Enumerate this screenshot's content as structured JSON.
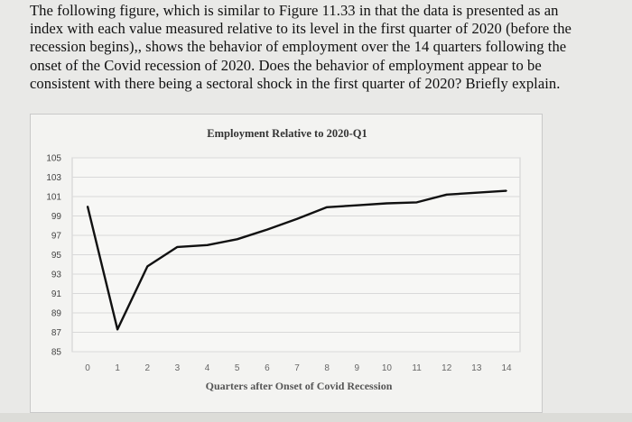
{
  "question": {
    "lines": [
      "The following figure, which is similar to Figure 11.33 in that the data is presented as an",
      "index with each value measured relative to its level in the first quarter of 2020 (before the",
      "recession begins),, shows the behavior of employment over the 14 quarters following the",
      "onset of the Covid recession of 2020.  Does the behavior of employment appear to be",
      "consistent with there being a sectoral shock in the first quarter of 2020? Briefly explain."
    ]
  },
  "chart_data": {
    "type": "line",
    "title": "Employment Relative to 2020-Q1",
    "xlabel": "Quarters after Onset of Covid Recession",
    "ylabel": "",
    "x": [
      0,
      1,
      2,
      3,
      4,
      5,
      6,
      7,
      8,
      9,
      10,
      11,
      12,
      13,
      14
    ],
    "y_ticks": [
      85,
      87,
      89,
      91,
      93,
      95,
      97,
      99,
      101,
      103,
      105
    ],
    "ylim": [
      85,
      105
    ],
    "xlim": [
      0,
      14
    ],
    "grid": true,
    "series": [
      {
        "values": [
          100,
          87.3,
          93.8,
          95.8,
          96.0,
          96.6,
          97.6,
          98.7,
          99.9,
          100.1,
          100.3,
          100.4,
          101.2,
          101.4,
          101.6
        ],
        "color": "#111111"
      }
    ]
  }
}
